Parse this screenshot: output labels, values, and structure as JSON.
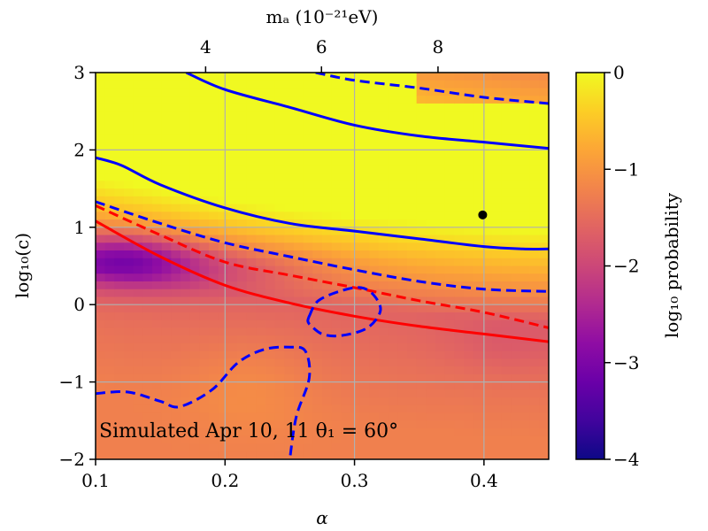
{
  "chart_data": {
    "type": "heatmap",
    "title": "",
    "annotation": "Simulated Apr 10, 11 θ₁ = 60°",
    "xlabel": "α",
    "ylabel": "log₁₀(c)",
    "top_xlabel": "mₐ (10⁻²¹eV)",
    "colorbar_label": "log₁₀ probability",
    "colormap": "plasma",
    "xlim": [
      0.1,
      0.45
    ],
    "ylim": [
      -2,
      3
    ],
    "clim": [
      -4,
      0
    ],
    "x_ticks": [
      0.1,
      0.2,
      0.3,
      0.4
    ],
    "x_tick_labels": [
      "0.1",
      "0.2",
      "0.3",
      "0.4"
    ],
    "y_ticks": [
      -2,
      -1,
      0,
      1,
      2,
      3
    ],
    "y_tick_labels": [
      "−2",
      "−1",
      "0",
      "1",
      "2",
      "3"
    ],
    "top_ticks": [
      4,
      6,
      8
    ],
    "top_tick_labels": [
      "4",
      "6",
      "8"
    ],
    "top_tick_alpha_positions": [
      0.185,
      0.2745,
      0.3645
    ],
    "colorbar_ticks": [
      0,
      -1,
      -2,
      -3,
      -4
    ],
    "colorbar_tick_labels": [
      "0",
      "−1",
      "−2",
      "−3",
      "−4"
    ],
    "grid": true,
    "marker_point": {
      "alpha": 0.399,
      "log10c": 1.16
    },
    "contours": [
      {
        "name": "blue-solid-upper",
        "color": "#0000ff",
        "style": "solid",
        "points": [
          [
            0.17,
            3.0
          ],
          [
            0.2,
            2.78
          ],
          [
            0.25,
            2.55
          ],
          [
            0.3,
            2.32
          ],
          [
            0.35,
            2.18
          ],
          [
            0.4,
            2.1
          ],
          [
            0.45,
            2.02
          ]
        ]
      },
      {
        "name": "blue-dashed-top",
        "color": "#0000ff",
        "style": "dashed",
        "points": [
          [
            0.27,
            3.0
          ],
          [
            0.3,
            2.9
          ],
          [
            0.35,
            2.8
          ],
          [
            0.4,
            2.68
          ],
          [
            0.45,
            2.6
          ]
        ]
      },
      {
        "name": "blue-solid-lower",
        "color": "#0000ff",
        "style": "solid",
        "points": [
          [
            0.1,
            1.9
          ],
          [
            0.12,
            1.8
          ],
          [
            0.15,
            1.55
          ],
          [
            0.2,
            1.25
          ],
          [
            0.25,
            1.05
          ],
          [
            0.3,
            0.95
          ],
          [
            0.35,
            0.85
          ],
          [
            0.4,
            0.75
          ],
          [
            0.43,
            0.72
          ],
          [
            0.45,
            0.72
          ]
        ]
      },
      {
        "name": "blue-dashed-middle",
        "color": "#0000ff",
        "style": "dashed",
        "points": [
          [
            0.1,
            1.33
          ],
          [
            0.15,
            1.05
          ],
          [
            0.2,
            0.8
          ],
          [
            0.25,
            0.62
          ],
          [
            0.3,
            0.45
          ],
          [
            0.35,
            0.3
          ],
          [
            0.4,
            0.2
          ],
          [
            0.45,
            0.17
          ]
        ]
      },
      {
        "name": "red-dashed",
        "color": "#ff0000",
        "style": "dashed",
        "points": [
          [
            0.1,
            1.28
          ],
          [
            0.15,
            0.9
          ],
          [
            0.2,
            0.55
          ],
          [
            0.25,
            0.38
          ],
          [
            0.3,
            0.22
          ],
          [
            0.35,
            0.05
          ],
          [
            0.4,
            -0.1
          ],
          [
            0.45,
            -0.3
          ]
        ]
      },
      {
        "name": "red-solid",
        "color": "#ff0000",
        "style": "solid",
        "points": [
          [
            0.1,
            1.08
          ],
          [
            0.15,
            0.62
          ],
          [
            0.2,
            0.25
          ],
          [
            0.25,
            0.02
          ],
          [
            0.3,
            -0.15
          ],
          [
            0.35,
            -0.28
          ],
          [
            0.4,
            -0.38
          ],
          [
            0.45,
            -0.48
          ]
        ]
      },
      {
        "name": "blue-dashed-loop",
        "color": "#0000ff",
        "style": "dashed",
        "closed": true,
        "points": [
          [
            0.265,
            -0.15
          ],
          [
            0.272,
            0.05
          ],
          [
            0.29,
            0.18
          ],
          [
            0.305,
            0.22
          ],
          [
            0.315,
            0.12
          ],
          [
            0.32,
            -0.08
          ],
          [
            0.31,
            -0.3
          ],
          [
            0.29,
            -0.4
          ],
          [
            0.275,
            -0.38
          ],
          [
            0.265,
            -0.25
          ]
        ]
      },
      {
        "name": "blue-dashed-bottom",
        "color": "#0000ff",
        "style": "dashed",
        "points": [
          [
            0.1,
            -1.15
          ],
          [
            0.125,
            -1.13
          ],
          [
            0.15,
            -1.25
          ],
          [
            0.165,
            -1.32
          ],
          [
            0.19,
            -1.1
          ],
          [
            0.21,
            -0.75
          ],
          [
            0.23,
            -0.58
          ],
          [
            0.25,
            -0.55
          ],
          [
            0.262,
            -0.6
          ],
          [
            0.265,
            -0.95
          ],
          [
            0.255,
            -1.45
          ],
          [
            0.25,
            -2.0
          ]
        ]
      }
    ]
  }
}
